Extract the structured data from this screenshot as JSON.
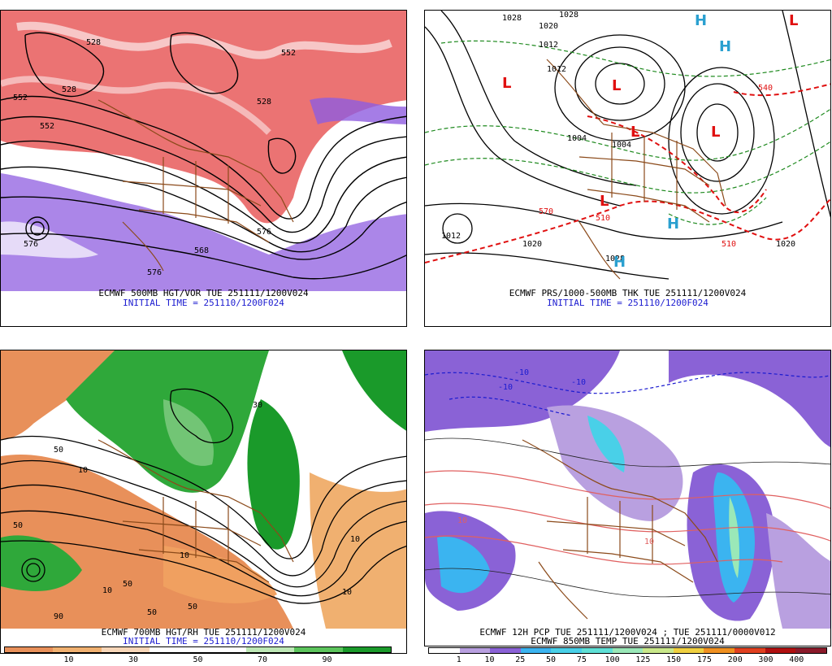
{
  "panels": [
    {
      "id": "tl",
      "title": "ECMWF 500MB HGT/VOR TUE 251111/1200V024",
      "initial": "INITIAL TIME = 251110/1200F024",
      "contour_labels": [
        "528",
        "528",
        "552",
        "528",
        "552",
        "576",
        "576",
        "552",
        "576",
        "568"
      ]
    },
    {
      "id": "tr",
      "title": "ECMWF PRS/1000-500MB THK TUE 251111/1200V024",
      "initial": "INITIAL TIME = 251110/1200F024",
      "contour_labels": [
        "1028",
        "1020",
        "1028",
        "1012",
        "1012",
        "1004",
        "1004",
        "1012",
        "1020",
        "1020",
        "1028",
        "540",
        "510",
        "570",
        "510"
      ],
      "highs_lows": [
        "L",
        "L",
        "L",
        "L",
        "L",
        "H",
        "H",
        "H",
        "H",
        "L"
      ]
    },
    {
      "id": "bl",
      "title": "ECMWF 700MB HGT/RH TUE 251111/1200V024",
      "initial": "INITIAL TIME = 251110/1200F024",
      "contour_labels": [
        "10",
        "50",
        "50",
        "10",
        "50",
        "50",
        "90",
        "10",
        "50",
        "30",
        "10",
        "10"
      ],
      "colorbar": {
        "colors": [
          "#e8905a",
          "#f0b070",
          "#f7d6b8",
          "#ffffff",
          "#ffffff",
          "#bde7b5",
          "#5cc45c",
          "#1a9a2a"
        ],
        "labels": [
          "10",
          "30",
          "50",
          "70",
          "90"
        ]
      }
    },
    {
      "id": "br",
      "title": "ECMWF 12H PCP TUE 251111/1200V024 ; TUE 251111/0000V012",
      "initial": "ECMWF 850MB TEMP TUE 251111/1200V024",
      "contour_labels": [
        "-10",
        "-10",
        "-10",
        "10",
        "10"
      ],
      "colorbar": {
        "colors": [
          "#ffffff",
          "#b9a0e0",
          "#8a62d6",
          "#3bb4f0",
          "#49d0e8",
          "#5fe0d6",
          "#9ae8b8",
          "#c9e88a",
          "#f0d040",
          "#f09020",
          "#e04020",
          "#b01010",
          "#8a1a2a"
        ],
        "labels": [
          "1",
          "10",
          "25",
          "50",
          "75",
          "100",
          "125",
          "150",
          "175",
          "200",
          "300",
          "400"
        ]
      }
    }
  ]
}
